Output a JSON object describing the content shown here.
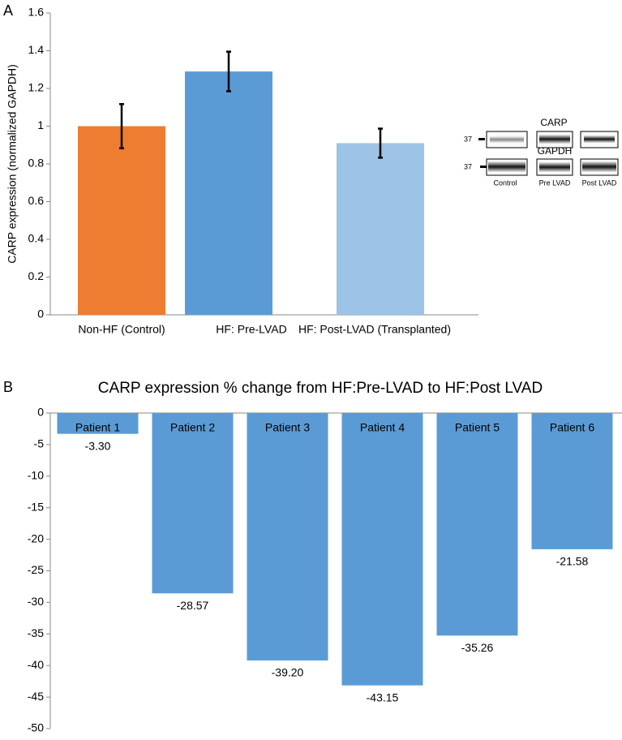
{
  "chart_data": [
    {
      "type": "bar",
      "panel_label": "A",
      "ylabel": "CARP expression (normalized  GAPDH)",
      "categories": [
        "Non-HF (Control)",
        "HF:  Pre-LVAD",
        "HF:  Post-LVAD (Transplanted)"
      ],
      "series": [
        {
          "values": [
            1.0,
            1.29,
            0.91
          ],
          "errors": [
            0.117,
            0.105,
            0.077
          ],
          "colors": [
            "#ed7d31",
            "#5b9bd5",
            "#9dc3e6"
          ]
        }
      ],
      "ylim": [
        0,
        1.6
      ],
      "yticks": [
        0,
        0.2,
        0.4,
        0.6,
        0.8,
        1,
        1.2,
        1.4,
        1.6
      ],
      "grid": false
    },
    {
      "type": "bar",
      "panel_label": "B",
      "title": "CARP expression % change from HF:Pre-LVAD to HF:Post LVAD",
      "categories": [
        "Patient 1",
        "Patient 2",
        "Patient 3",
        "Patient 4",
        "Patient 5",
        "Patient 6"
      ],
      "series": [
        {
          "color": "#5b9bd5",
          "values": [
            -3.3,
            -28.57,
            -39.2,
            -43.15,
            -35.26,
            -21.58
          ],
          "value_labels": [
            "-3.30",
            "-28.57",
            "-39.20",
            "-43.15",
            "-35.26",
            "-21.58"
          ]
        }
      ],
      "ylim": [
        -50,
        0
      ],
      "yticks": [
        0,
        -5,
        -10,
        -15,
        -20,
        -25,
        -30,
        -35,
        -40,
        -45,
        -50
      ],
      "grid": false
    }
  ],
  "blot": {
    "rows": [
      "CARP",
      "GAPDH"
    ],
    "marker": [
      "37",
      "37"
    ],
    "lanes": [
      "Control",
      "Pre LVAD",
      "Post LVAD"
    ]
  }
}
